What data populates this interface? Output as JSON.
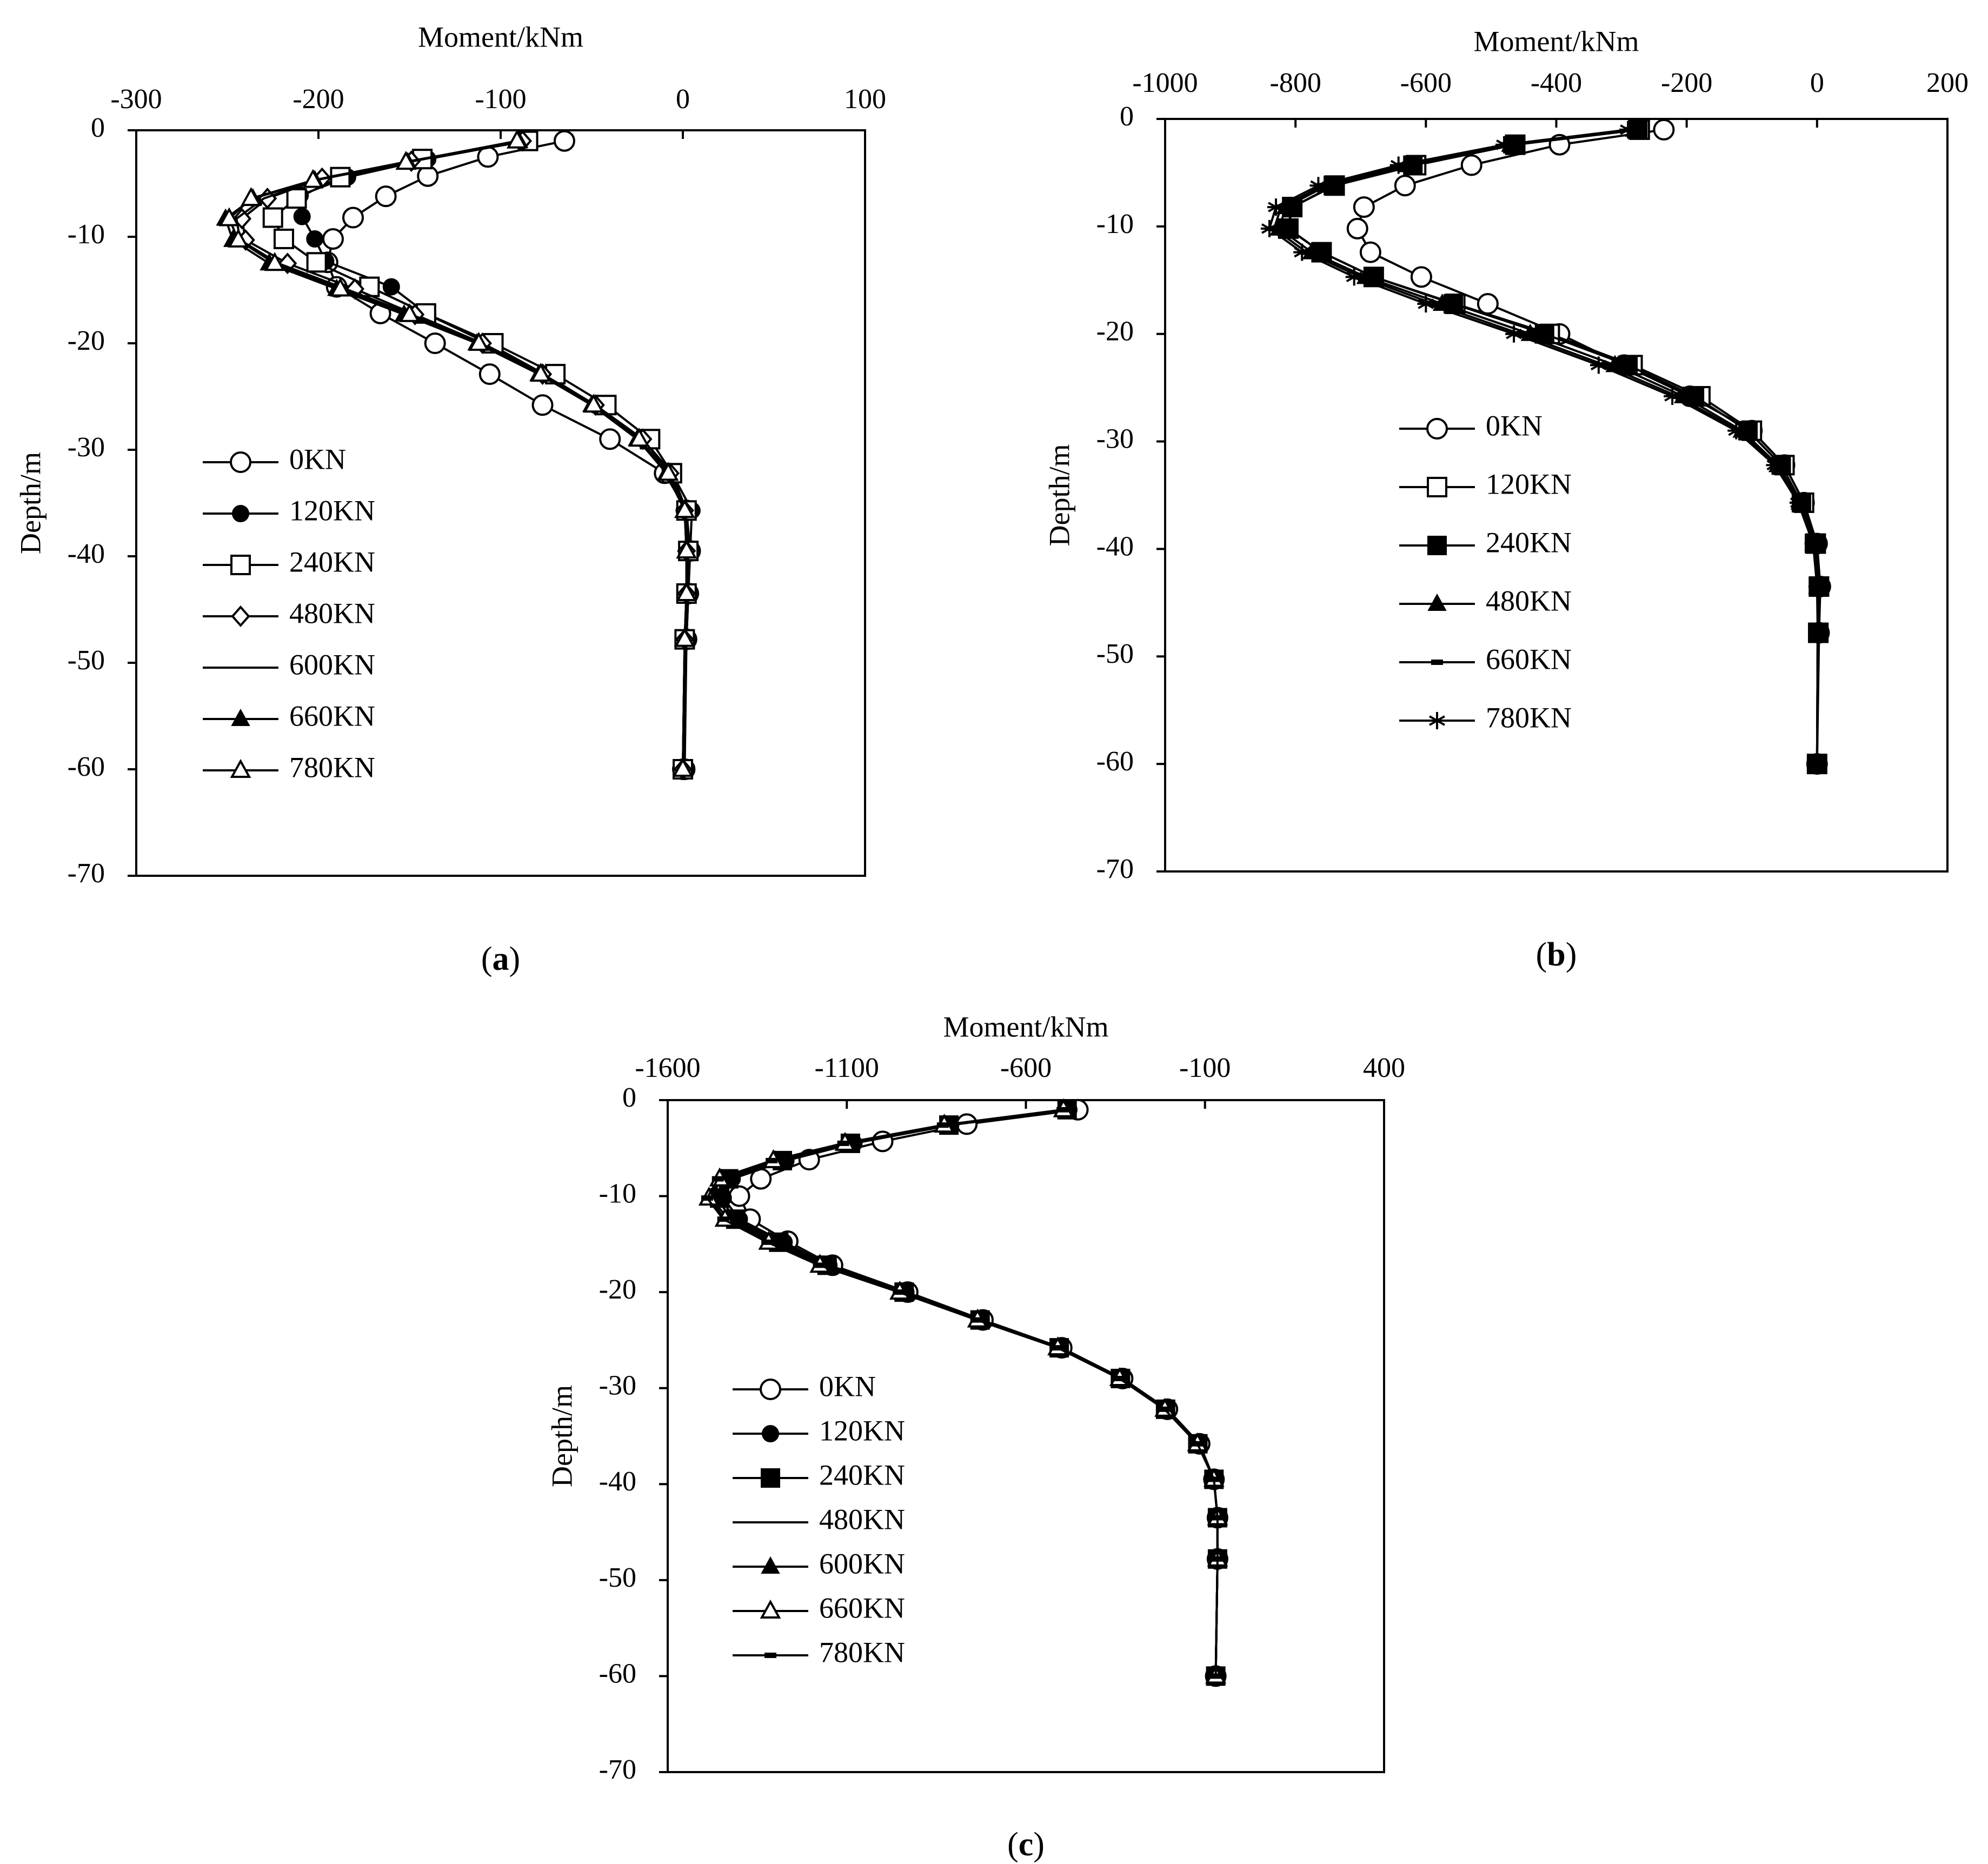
{
  "chart_data": [
    {
      "id": "a",
      "type": "line",
      "caption": "(a)",
      "caption_letter": "a",
      "xlabel": "Moment/kNm",
      "ylabel": "Depth/m",
      "xlim": [
        -300,
        100
      ],
      "ylim": [
        -70,
        0
      ],
      "xticks": [
        -300,
        -200,
        -100,
        0,
        100
      ],
      "yticks": [
        0,
        -10,
        -20,
        -30,
        -40,
        -50,
        -60,
        -70
      ],
      "grid": false,
      "legend_position": "left-middle",
      "series": [
        {
          "name": "0KN",
          "marker": "circle-open",
          "x": [
            -65,
            -107,
            -140,
            -163,
            -181,
            -192,
            -195,
            -190,
            -166,
            -136,
            -106,
            -77,
            -40,
            -10,
            2,
            4,
            3,
            2,
            1,
            0
          ],
          "y": [
            -1,
            -2.5,
            -4.3,
            -6.2,
            -8.2,
            -10.2,
            -12.4,
            -14.7,
            -17.2,
            -20,
            -22.9,
            -25.8,
            -29,
            -32.2,
            -35.7,
            -39.5,
            -43.5,
            -47.8,
            -60,
            -60
          ]
        },
        {
          "name": "120KN",
          "marker": "circle-filled",
          "x": [
            -87,
            -140,
            -184,
            -210,
            -209,
            -202,
            -196,
            -160,
            -140,
            -107,
            -76,
            -48,
            -22,
            -6,
            5,
            4,
            3,
            2,
            0
          ],
          "y": [
            -1,
            -2.7,
            -4.4,
            -6.1,
            -8.1,
            -10.2,
            -12.3,
            -14.7,
            -17.3,
            -20,
            -22.9,
            -25.8,
            -29,
            -32.2,
            -35.7,
            -39.5,
            -43.5,
            -47.8,
            -60
          ]
        },
        {
          "name": "240KN",
          "marker": "square-open",
          "x": [
            -85,
            -143,
            -188,
            -212,
            -225,
            -219,
            -201,
            -172,
            -141,
            -104,
            -70,
            -42,
            -18,
            -6,
            2,
            3,
            2,
            1,
            0
          ],
          "y": [
            -1,
            -2.7,
            -4.4,
            -6.4,
            -8.2,
            -10.2,
            -12.4,
            -14.7,
            -17.2,
            -20,
            -22.9,
            -25.8,
            -29,
            -32.2,
            -35.7,
            -39.5,
            -43.5,
            -47.8,
            -60
          ]
        },
        {
          "name": "480KN",
          "marker": "diamond-open",
          "x": [
            -88,
            -149,
            -198,
            -228,
            -242,
            -240,
            -217,
            -180,
            -147,
            -110,
            -77,
            -48,
            -22,
            -7,
            1,
            2,
            2,
            1,
            0
          ],
          "y": [
            -1,
            -2.9,
            -4.5,
            -6.4,
            -8.3,
            -10.3,
            -12.5,
            -14.9,
            -17.3,
            -20,
            -22.9,
            -25.8,
            -29,
            -32.2,
            -35.7,
            -39.5,
            -43.5,
            -47.8,
            -60
          ]
        },
        {
          "name": "600KN",
          "marker": "none",
          "x": [
            -89,
            -150,
            -200,
            -230,
            -245,
            -243,
            -222,
            -185,
            -149,
            -111,
            -78,
            -49,
            -24,
            -8,
            1,
            2,
            2,
            1,
            0
          ],
          "y": [
            -1,
            -2.9,
            -4.6,
            -6.4,
            -8.3,
            -10.3,
            -12.5,
            -14.9,
            -17.3,
            -20,
            -22.9,
            -25.8,
            -29,
            -32.2,
            -35.7,
            -39.5,
            -43.5,
            -47.8,
            -60
          ]
        },
        {
          "name": "660KN",
          "marker": "triangle-filled",
          "x": [
            -90,
            -151,
            -202,
            -236,
            -251,
            -247,
            -227,
            -190,
            -153,
            -113,
            -79,
            -50,
            -25,
            -9,
            1,
            2,
            2,
            1,
            0
          ],
          "y": [
            -1,
            -3,
            -4.7,
            -6.4,
            -8.3,
            -10.3,
            -12.5,
            -14.9,
            -17.3,
            -20,
            -22.9,
            -25.8,
            -29,
            -32.2,
            -35.7,
            -39.5,
            -43.5,
            -47.8,
            -60
          ]
        },
        {
          "name": "780KN",
          "marker": "triangle-open",
          "x": [
            -91,
            -152,
            -203,
            -237,
            -249,
            -244,
            -224,
            -188,
            -150,
            -112,
            -78,
            -49,
            -24,
            -8,
            1,
            2,
            2,
            1,
            0
          ],
          "y": [
            -1,
            -3,
            -4.7,
            -6.4,
            -8.3,
            -10.3,
            -12.5,
            -14.9,
            -17.3,
            -20,
            -22.9,
            -25.8,
            -29,
            -32.2,
            -35.7,
            -39.5,
            -43.5,
            -47.8,
            -60
          ]
        }
      ]
    },
    {
      "id": "b",
      "type": "line",
      "caption": "(b)",
      "caption_letter": "b",
      "xlabel": "Moment/kNm",
      "ylabel": "Depth/m",
      "xlim": [
        -1000,
        200
      ],
      "ylim": [
        -70,
        0
      ],
      "xticks": [
        -1000,
        -800,
        -600,
        -400,
        -200,
        0,
        200
      ],
      "yticks": [
        0,
        -10,
        -20,
        -30,
        -40,
        -50,
        -60,
        -70
      ],
      "grid": false,
      "legend_position": "left-middle",
      "series": [
        {
          "name": "0KN",
          "marker": "circle-open",
          "x": [
            -235,
            -395,
            -530,
            -632,
            -695,
            -705,
            -685,
            -607,
            -505,
            -395,
            -296,
            -195,
            -100,
            -50,
            -20,
            0,
            5,
            3,
            0
          ],
          "y": [
            -1,
            -2.4,
            -4.3,
            -6.2,
            -8.2,
            -10.2,
            -12.4,
            -14.7,
            -17.2,
            -20,
            -22.9,
            -25.8,
            -29,
            -32.2,
            -35.7,
            -39.5,
            -43.5,
            -47.8,
            -60
          ]
        },
        {
          "name": "120KN",
          "marker": "square-open",
          "x": [
            -272,
            -463,
            -615,
            -740,
            -805,
            -811,
            -760,
            -680,
            -555,
            -410,
            -283,
            -179,
            -100,
            -50,
            -20,
            -2,
            3,
            2,
            0
          ],
          "y": [
            -1,
            -2.4,
            -4.3,
            -6.2,
            -8.2,
            -10.2,
            -12.4,
            -14.7,
            -17.2,
            -20,
            -22.9,
            -25.8,
            -29,
            -32.2,
            -35.7,
            -39.5,
            -43.5,
            -47.8,
            -60
          ]
        },
        {
          "name": "240KN",
          "marker": "square-filled",
          "x": [
            -275,
            -463,
            -620,
            -742,
            -805,
            -812,
            -760,
            -680,
            -558,
            -418,
            -290,
            -188,
            -106,
            -55,
            -24,
            -4,
            2,
            1,
            0
          ],
          "y": [
            -1,
            -2.4,
            -4.3,
            -6.2,
            -8.2,
            -10.2,
            -12.4,
            -14.7,
            -17.2,
            -20,
            -22.9,
            -25.8,
            -29,
            -32.2,
            -35.7,
            -39.5,
            -43.5,
            -47.8,
            -60
          ]
        },
        {
          "name": "480KN",
          "marker": "triangle-filled",
          "x": [
            -280,
            -470,
            -628,
            -752,
            -815,
            -825,
            -775,
            -692,
            -575,
            -440,
            -310,
            -205,
            -115,
            -60,
            -26,
            -5,
            1,
            1,
            0
          ],
          "y": [
            -1,
            -2.4,
            -4.3,
            -6.2,
            -8.2,
            -10.2,
            -12.4,
            -14.7,
            -17.2,
            -20,
            -22.9,
            -25.8,
            -29,
            -32.2,
            -35.7,
            -39.5,
            -43.5,
            -47.8,
            -60
          ]
        },
        {
          "name": "660KN",
          "marker": "dash",
          "x": [
            -285,
            -475,
            -635,
            -758,
            -822,
            -833,
            -783,
            -700,
            -588,
            -455,
            -325,
            -214,
            -120,
            -63,
            -28,
            -6,
            1,
            1,
            0
          ],
          "y": [
            -1,
            -2.4,
            -4.3,
            -6.2,
            -8.2,
            -10.2,
            -12.4,
            -14.7,
            -17.2,
            -20,
            -22.9,
            -25.8,
            -29,
            -32.2,
            -35.7,
            -39.5,
            -43.5,
            -47.8,
            -60
          ]
        },
        {
          "name": "780KN",
          "marker": "asterisk",
          "x": [
            -290,
            -480,
            -642,
            -765,
            -830,
            -840,
            -790,
            -710,
            -600,
            -465,
            -335,
            -222,
            -124,
            -65,
            -29,
            -6,
            0,
            1,
            0
          ],
          "y": [
            -1,
            -2.4,
            -4.3,
            -6.2,
            -8.2,
            -10.2,
            -12.4,
            -14.7,
            -17.2,
            -20,
            -22.9,
            -25.8,
            -29,
            -32.2,
            -35.7,
            -39.5,
            -43.5,
            -47.8,
            -60
          ]
        }
      ]
    },
    {
      "id": "c",
      "type": "line",
      "caption": "(c)",
      "caption_letter": "c",
      "xlabel": "Moment/kNm",
      "ylabel": "Depth/m",
      "xlim": [
        -1600,
        400
      ],
      "ylim": [
        -70,
        0
      ],
      "xticks": [
        -1600,
        -1100,
        -600,
        -100,
        400
      ],
      "yticks": [
        0,
        -10,
        -20,
        -30,
        -40,
        -50,
        -60,
        -70
      ],
      "grid": false,
      "legend_position": "left-middle",
      "series": [
        {
          "name": "0KN",
          "marker": "circle-open",
          "x": [
            -455,
            -765,
            -1000,
            -1205,
            -1340,
            -1400,
            -1370,
            -1265,
            -1140,
            -930,
            -720,
            -500,
            -330,
            -205,
            -115,
            -75,
            -65,
            -65,
            -70
          ],
          "y": [
            -1,
            -2.5,
            -4.3,
            -6.2,
            -8.2,
            -10,
            -12.4,
            -14.7,
            -17.2,
            -20,
            -22.9,
            -25.8,
            -29,
            -32.2,
            -35.8,
            -39.5,
            -43.5,
            -47.8,
            -60
          ]
        },
        {
          "name": "120KN",
          "marker": "circle-filled",
          "x": [
            -480,
            -810,
            -1080,
            -1270,
            -1420,
            -1445,
            -1400,
            -1275,
            -1150,
            -935,
            -725,
            -505,
            -335,
            -210,
            -120,
            -75,
            -65,
            -65,
            -70
          ],
          "y": [
            -1,
            -2.6,
            -4.5,
            -6.3,
            -8.2,
            -10.2,
            -12.4,
            -14.8,
            -17.2,
            -20,
            -22.9,
            -25.8,
            -29,
            -32.2,
            -35.8,
            -39.5,
            -43.5,
            -47.8,
            -60
          ]
        },
        {
          "name": "240KN",
          "marker": "square-filled",
          "x": [
            -485,
            -815,
            -1090,
            -1280,
            -1430,
            -1455,
            -1410,
            -1290,
            -1155,
            -940,
            -728,
            -507,
            -336,
            -210,
            -120,
            -75,
            -65,
            -65,
            -70
          ],
          "y": [
            -1,
            -2.6,
            -4.5,
            -6.3,
            -8.2,
            -10.2,
            -12.4,
            -14.8,
            -17.2,
            -20,
            -22.9,
            -25.8,
            -29,
            -32.2,
            -35.8,
            -39.5,
            -43.5,
            -47.8,
            -60
          ]
        },
        {
          "name": "480KN",
          "marker": "none",
          "x": [
            -488,
            -820,
            -1095,
            -1290,
            -1440,
            -1465,
            -1420,
            -1300,
            -1162,
            -945,
            -730,
            -508,
            -337,
            -211,
            -120,
            -75,
            -65,
            -65,
            -70
          ],
          "y": [
            -1,
            -2.6,
            -4.5,
            -6.3,
            -8.2,
            -10.2,
            -12.4,
            -14.8,
            -17.2,
            -20,
            -22.9,
            -25.8,
            -29,
            -32.2,
            -35.8,
            -39.5,
            -43.5,
            -47.8,
            -60
          ]
        },
        {
          "name": "600KN",
          "marker": "triangle-filled",
          "x": [
            -492,
            -825,
            -1100,
            -1300,
            -1450,
            -1480,
            -1430,
            -1310,
            -1170,
            -950,
            -733,
            -510,
            -338,
            -212,
            -121,
            -75,
            -65,
            -65,
            -70
          ],
          "y": [
            -1,
            -2.6,
            -4.5,
            -6.3,
            -8.2,
            -10.2,
            -12.4,
            -14.8,
            -17.2,
            -20,
            -22.9,
            -25.8,
            -29,
            -32.2,
            -35.8,
            -39.5,
            -43.5,
            -47.8,
            -60
          ]
        },
        {
          "name": "660KN",
          "marker": "triangle-open",
          "x": [
            -495,
            -828,
            -1105,
            -1305,
            -1455,
            -1485,
            -1440,
            -1318,
            -1175,
            -952,
            -735,
            -511,
            -338,
            -212,
            -121,
            -75,
            -65,
            -65,
            -70
          ],
          "y": [
            -1,
            -2.6,
            -4.5,
            -6.3,
            -8.2,
            -10.2,
            -12.4,
            -14.8,
            -17.2,
            -20,
            -22.9,
            -25.8,
            -29,
            -32.2,
            -35.8,
            -39.5,
            -43.5,
            -47.8,
            -60
          ]
        },
        {
          "name": "780KN",
          "marker": "dash",
          "x": [
            -498,
            -832,
            -1110,
            -1310,
            -1460,
            -1490,
            -1445,
            -1322,
            -1178,
            -955,
            -737,
            -512,
            -339,
            -213,
            -121,
            -75,
            -65,
            -65,
            -70
          ],
          "y": [
            -1,
            -2.6,
            -4.5,
            -6.3,
            -8.2,
            -10.2,
            -12.4,
            -14.8,
            -17.2,
            -20,
            -22.9,
            -25.8,
            -29,
            -32.2,
            -35.8,
            -39.5,
            -43.5,
            -47.8,
            -60
          ]
        }
      ]
    }
  ]
}
